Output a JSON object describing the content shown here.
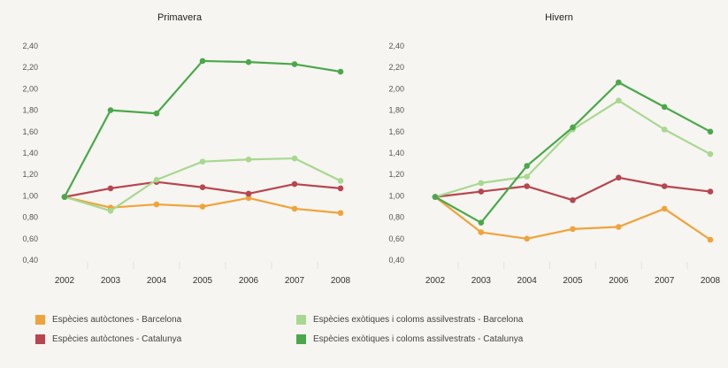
{
  "chart_data": [
    {
      "type": "line",
      "title": "Primavera",
      "categories": [
        "2002",
        "2003",
        "2004",
        "2005",
        "2006",
        "2007",
        "2008"
      ],
      "yticks": [
        "0,40",
        "0,60",
        "0,80",
        "1,00",
        "1,20",
        "1,40",
        "1,60",
        "1,80",
        "2,00",
        "2,20",
        "2,40"
      ],
      "ylim": [
        0.4,
        2.4
      ],
      "series": [
        {
          "name": "Espècies autòctones - Barcelona",
          "color": "#f0a33a",
          "values": [
            0.99,
            0.89,
            0.92,
            0.9,
            0.98,
            0.88,
            0.84
          ]
        },
        {
          "name": "Espècies autòctones - Catalunya",
          "color": "#b8454f",
          "values": [
            0.99,
            1.07,
            1.13,
            1.08,
            1.02,
            1.11,
            1.07
          ]
        },
        {
          "name": "Espècies exòtiques i coloms assilvestrats - Barcelona",
          "color": "#a8d890",
          "values": [
            0.99,
            0.86,
            1.15,
            1.32,
            1.34,
            1.35,
            1.14
          ]
        },
        {
          "name": "Espècies exòtiques i coloms assilvestrats - Catalunya",
          "color": "#4aa84a",
          "values": [
            0.99,
            1.8,
            1.77,
            2.26,
            2.25,
            2.23,
            2.16
          ]
        }
      ]
    },
    {
      "type": "line",
      "title": "Hivern",
      "categories": [
        "2002",
        "2003",
        "2004",
        "2005",
        "2006",
        "2007",
        "2008"
      ],
      "yticks": [
        "0,40",
        "0,60",
        "0,80",
        "1,00",
        "1,20",
        "1,40",
        "1,60",
        "1,80",
        "2,00",
        "2,20",
        "2,40"
      ],
      "ylim": [
        0.4,
        2.4
      ],
      "series": [
        {
          "name": "Espècies autòctones - Barcelona",
          "color": "#f0a33a",
          "values": [
            0.99,
            0.66,
            0.6,
            0.69,
            0.71,
            0.88,
            0.59
          ]
        },
        {
          "name": "Espècies autòctones - Catalunya",
          "color": "#b8454f",
          "values": [
            0.99,
            1.04,
            1.09,
            0.96,
            1.17,
            1.09,
            1.04
          ]
        },
        {
          "name": "Espècies exòtiques i coloms assilvestrats - Barcelona",
          "color": "#a8d890",
          "values": [
            0.99,
            1.12,
            1.18,
            1.62,
            1.89,
            1.62,
            1.39
          ]
        },
        {
          "name": "Espècies exòtiques i coloms assilvestrats - Catalunya",
          "color": "#4aa84a",
          "values": [
            0.99,
            0.75,
            1.28,
            1.64,
            2.06,
            1.83,
            1.6
          ]
        }
      ]
    }
  ],
  "legend": [
    {
      "label": "Espècies autòctones - Barcelona",
      "color": "#f0a33a"
    },
    {
      "label": "Espècies autòctones - Catalunya",
      "color": "#b8454f"
    },
    {
      "label": "Espècies exòtiques i coloms assilvestrats - Barcelona",
      "color": "#a8d890"
    },
    {
      "label": "Espècies exòtiques i coloms assilvestrats - Catalunya",
      "color": "#4aa84a"
    }
  ]
}
